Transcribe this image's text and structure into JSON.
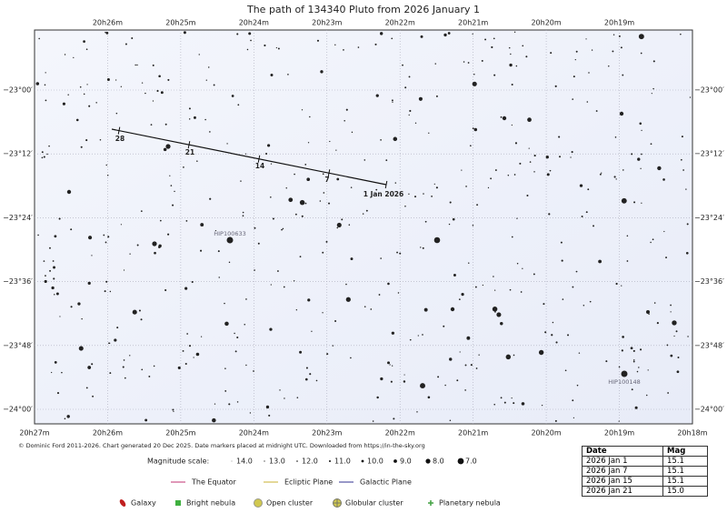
{
  "title": "The path of 134340 Pluto from 2026 January 1",
  "ra_top": [
    "20h26m",
    "20h25m",
    "20h24m",
    "20h23m",
    "20h22m",
    "20h21m",
    "20h20m",
    "20h19m"
  ],
  "ra_bottom": [
    "20h27m",
    "20h26m",
    "20h25m",
    "20h24m",
    "20h23m",
    "20h22m",
    "20h21m",
    "20h20m",
    "20h19m",
    "20h18m"
  ],
  "dec": [
    "−23°00′",
    "−23°12′",
    "−23°24′",
    "−23°36′",
    "−23°48′",
    "−24°00′"
  ],
  "path_labels": [
    "28",
    "21",
    "14",
    "7",
    "1 Jan 2026"
  ],
  "named_stars": [
    "HIP100633",
    "HIP100148"
  ],
  "credit": "© Dominic Ford 2011-2026. Chart generated 20 Dec 2025. Date markers placed at midnight UTC. Downloaded from https://in-the-sky.org",
  "magnitude_scale": {
    "label": "Magnitude scale:",
    "steps": [
      "14.0",
      "13.0",
      "12.0",
      "11.0",
      "10.0",
      "9.0",
      "8.0",
      "7.0"
    ]
  },
  "lines_legend": [
    "The Equator",
    "Ecliptic Plane",
    "Galactic Plane"
  ],
  "objects_legend": [
    "Galaxy",
    "Bright nebula",
    "Open cluster",
    "Globular cluster",
    "Planetary nebula"
  ],
  "table": {
    "header": [
      "Date",
      "Mag"
    ],
    "rows": [
      [
        "2026 Jan 1",
        "15.1"
      ],
      [
        "2026 Jan 7",
        "15.1"
      ],
      [
        "2026 Jan 15",
        "15.1"
      ],
      [
        "2026 Jan 21",
        "15.0"
      ]
    ]
  }
}
